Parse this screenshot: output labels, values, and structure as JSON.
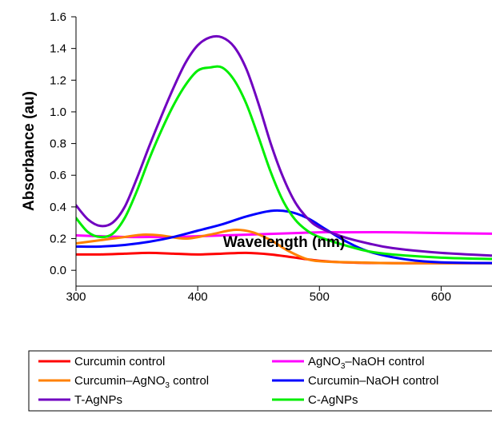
{
  "chart_data": {
    "type": "line",
    "xlabel": "Wavelength (nm)",
    "ylabel": "Absorbance (au)",
    "xlim": [
      300,
      650
    ],
    "ylim": [
      -0.1,
      1.6
    ],
    "x_ticks": [
      300,
      400,
      500,
      600
    ],
    "y_ticks": [
      0.0,
      0.2,
      0.4,
      0.6,
      0.8,
      1.0,
      1.2,
      1.4,
      1.6
    ],
    "y_tick_labels": [
      "0.0",
      "0.2",
      "0.4",
      "0.6",
      "0.8",
      "1.0",
      "1.2",
      "1.4",
      "1.6"
    ],
    "grid": false,
    "legend_position": "bottom",
    "series": [
      {
        "name": "Curcumin control",
        "color": "#ff0000",
        "x": [
          300,
          320,
          340,
          360,
          380,
          400,
          420,
          440,
          460,
          480,
          500,
          520,
          560,
          600,
          650
        ],
        "y": [
          0.1,
          0.1,
          0.105,
          0.11,
          0.105,
          0.1,
          0.105,
          0.11,
          0.1,
          0.08,
          0.06,
          0.05,
          0.045,
          0.045,
          0.045
        ]
      },
      {
        "name": "AgNO3–NaOH control",
        "color": "#ff00ff",
        "x": [
          300,
          320,
          340,
          360,
          380,
          400,
          420,
          440,
          460,
          480,
          500,
          520,
          560,
          600,
          650
        ],
        "y": [
          0.22,
          0.215,
          0.21,
          0.21,
          0.21,
          0.215,
          0.22,
          0.225,
          0.23,
          0.235,
          0.24,
          0.24,
          0.24,
          0.235,
          0.23
        ]
      },
      {
        "name": "Curcumin–AgNO3 control",
        "color": "#ff8000",
        "x": [
          300,
          320,
          340,
          355,
          370,
          390,
          410,
          430,
          445,
          460,
          475,
          490,
          505,
          530,
          560,
          600,
          650
        ],
        "y": [
          0.17,
          0.19,
          0.21,
          0.225,
          0.22,
          0.2,
          0.225,
          0.255,
          0.24,
          0.19,
          0.12,
          0.07,
          0.055,
          0.05,
          0.045,
          0.045,
          0.045
        ]
      },
      {
        "name": "Curcumin–NaOH control",
        "color": "#0000ff",
        "x": [
          300,
          320,
          340,
          360,
          380,
          400,
          420,
          440,
          460,
          475,
          490,
          505,
          520,
          540,
          570,
          600,
          650
        ],
        "y": [
          0.15,
          0.15,
          0.16,
          0.18,
          0.21,
          0.25,
          0.29,
          0.34,
          0.375,
          0.37,
          0.33,
          0.26,
          0.19,
          0.12,
          0.07,
          0.05,
          0.045
        ]
      },
      {
        "name": "T-AgNPs",
        "color": "#7000c0",
        "x": [
          300,
          310,
          320,
          330,
          340,
          350,
          360,
          370,
          380,
          390,
          400,
          410,
          420,
          430,
          440,
          450,
          460,
          470,
          480,
          490,
          500,
          520,
          540,
          560,
          600,
          650
        ],
        "y": [
          0.41,
          0.32,
          0.28,
          0.3,
          0.4,
          0.58,
          0.78,
          0.97,
          1.15,
          1.31,
          1.42,
          1.47,
          1.47,
          1.41,
          1.27,
          1.05,
          0.8,
          0.59,
          0.43,
          0.33,
          0.27,
          0.21,
          0.17,
          0.14,
          0.11,
          0.09
        ]
      },
      {
        "name": "C-AgNPs",
        "color": "#00ee00",
        "x": [
          300,
          310,
          320,
          330,
          340,
          350,
          360,
          370,
          380,
          390,
          400,
          410,
          420,
          430,
          440,
          450,
          460,
          470,
          480,
          490,
          500,
          520,
          540,
          560,
          600,
          650
        ],
        "y": [
          0.33,
          0.24,
          0.21,
          0.23,
          0.33,
          0.5,
          0.7,
          0.88,
          1.04,
          1.17,
          1.26,
          1.28,
          1.28,
          1.2,
          1.05,
          0.84,
          0.62,
          0.44,
          0.32,
          0.25,
          0.21,
          0.16,
          0.12,
          0.1,
          0.08,
          0.07
        ]
      }
    ],
    "legend": [
      {
        "series": "Curcumin control",
        "color": "#ff0000",
        "text": "Curcumin control",
        "sub": "",
        "tail": ""
      },
      {
        "series": "AgNO3–NaOH control",
        "color": "#ff00ff",
        "text": "AgNO",
        "sub": "3",
        "tail": "–NaOH control"
      },
      {
        "series": "Curcumin–AgNO3 control",
        "color": "#ff8000",
        "text": "Curcumin–AgNO",
        "sub": "3",
        "tail": " control"
      },
      {
        "series": "Curcumin–NaOH control",
        "color": "#0000ff",
        "text": "Curcumin–NaOH control",
        "sub": "",
        "tail": ""
      },
      {
        "series": "T-AgNPs",
        "color": "#7000c0",
        "text": "T-AgNPs",
        "sub": "",
        "tail": ""
      },
      {
        "series": "C-AgNPs",
        "color": "#00ee00",
        "text": "C-AgNPs",
        "sub": "",
        "tail": ""
      }
    ]
  }
}
